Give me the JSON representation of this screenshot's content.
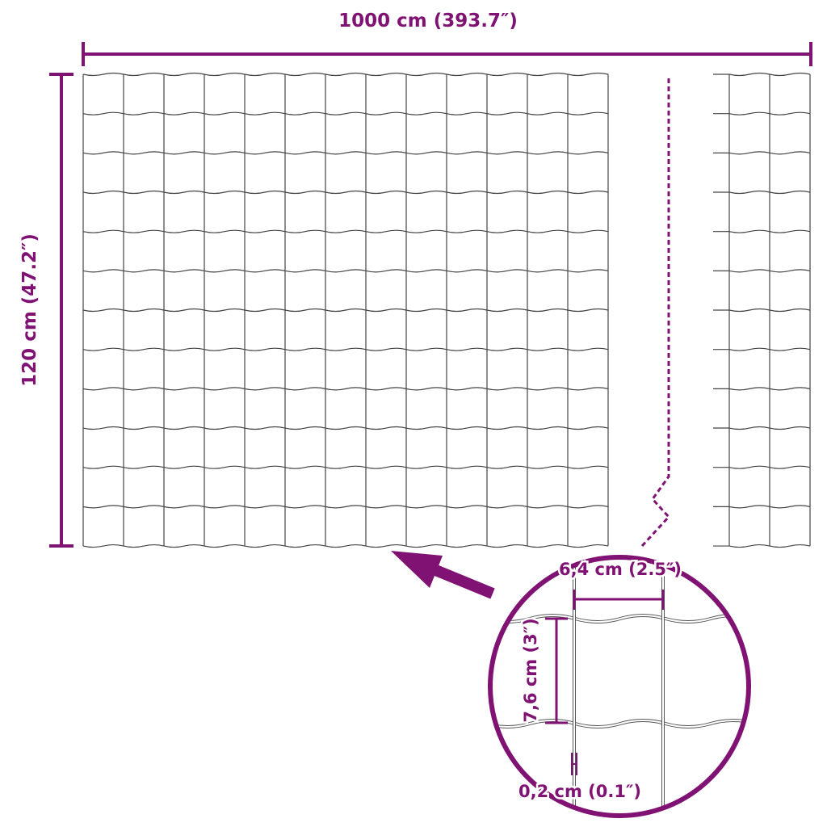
{
  "colors": {
    "accent": "#7f1273",
    "wire": "#444444"
  },
  "dimensions": {
    "length_label": "1000 cm (393.7″)",
    "height_label": "120 cm (47.2″)"
  },
  "detail": {
    "mesh_width_label": "6,4 cm (2.5″)",
    "mesh_height_label": "7,6 cm (3″)",
    "wire_thickness_label": "0,2 cm (0.1″)"
  }
}
